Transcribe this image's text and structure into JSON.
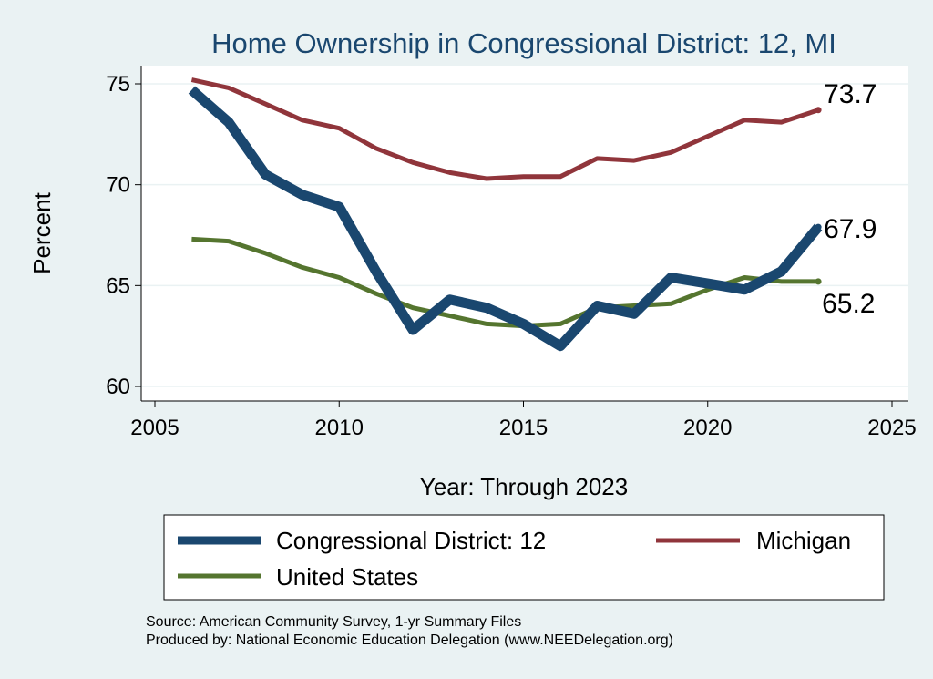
{
  "chart_data": {
    "type": "line",
    "title": "Home Ownership in Congressional District:  12, MI",
    "xlabel": "Year: Through 2023",
    "ylabel": "Percent",
    "xlim": [
      2005,
      2025
    ],
    "ylim": [
      59.5,
      76
    ],
    "x_ticks": [
      "2005",
      "2010",
      "2015",
      "2020",
      "2025"
    ],
    "y_ticks": [
      "60",
      "65",
      "70",
      "75"
    ],
    "grid": true,
    "legend_position": "bottom",
    "x": [
      2006,
      2007,
      2008,
      2009,
      2010,
      2011,
      2012,
      2013,
      2014,
      2015,
      2016,
      2017,
      2018,
      2019,
      2020,
      2021,
      2022,
      2023
    ],
    "series": [
      {
        "name": "Congressional District:  12",
        "color": "#1a476f",
        "values": [
          74.7,
          73.1,
          70.5,
          69.5,
          68.9,
          65.7,
          62.8,
          64.3,
          63.9,
          63.1,
          62.0,
          64.0,
          63.6,
          65.4,
          65.1,
          64.8,
          65.7,
          67.9
        ],
        "end_label": "67.9"
      },
      {
        "name": "Michigan",
        "color": "#90353b",
        "values": [
          75.2,
          74.8,
          74.0,
          73.2,
          72.8,
          71.8,
          71.1,
          70.6,
          70.3,
          70.4,
          70.4,
          71.3,
          71.2,
          71.6,
          72.4,
          73.2,
          73.1,
          73.7
        ],
        "end_label": "73.7"
      },
      {
        "name": "United States",
        "color": "#55752f",
        "values": [
          67.3,
          67.2,
          66.6,
          65.9,
          65.4,
          64.6,
          63.9,
          63.5,
          63.1,
          63.0,
          63.1,
          63.9,
          64.0,
          64.1,
          64.8,
          65.4,
          65.2,
          65.2
        ],
        "end_label": "65.2"
      }
    ],
    "legend": [
      "Congressional District:  12",
      "Michigan",
      "United States"
    ],
    "notes": [
      "Source: American Community Survey, 1-yr Summary Files",
      "Produced by: National Economic Education Delegation (www.NEEDelegation.org)"
    ]
  }
}
